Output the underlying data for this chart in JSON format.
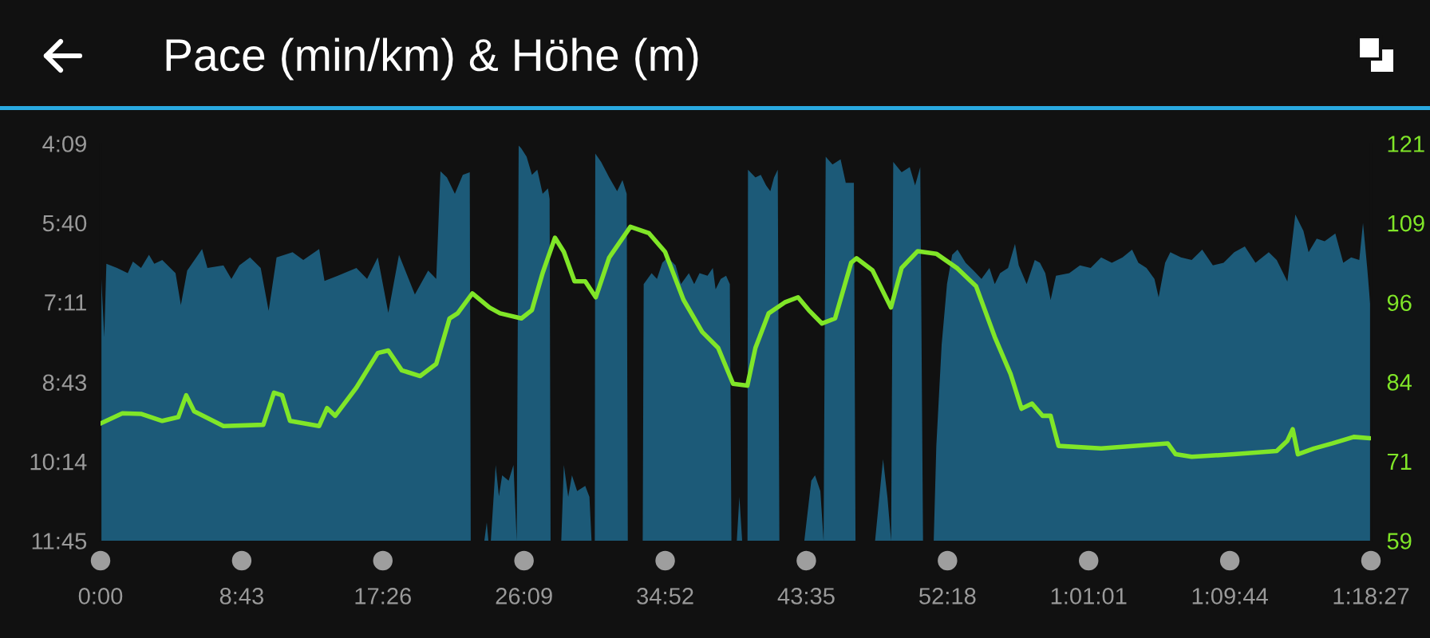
{
  "chart_data": {
    "type": "area",
    "title": "Pace (min/km) & Höhe (m)",
    "grid": false,
    "xlim": [
      0,
      78.45
    ],
    "xticks": [
      {
        "value": 0,
        "label": "0:00"
      },
      {
        "value": 8.717,
        "label": "8:43"
      },
      {
        "value": 17.433,
        "label": "17:26"
      },
      {
        "value": 26.15,
        "label": "26:09"
      },
      {
        "value": 34.867,
        "label": "34:52"
      },
      {
        "value": 43.583,
        "label": "43:35"
      },
      {
        "value": 52.3,
        "label": "52:18"
      },
      {
        "value": 61.017,
        "label": "1:01:01"
      },
      {
        "value": 69.733,
        "label": "1:09:44"
      },
      {
        "value": 78.45,
        "label": "1:18:27"
      }
    ],
    "ylim": [
      11.75,
      4.15
    ],
    "yticks": [
      {
        "value": 4.15,
        "label": "4:09"
      },
      {
        "value": 5.667,
        "label": "5:40"
      },
      {
        "value": 7.183,
        "label": "7:11"
      },
      {
        "value": 8.717,
        "label": "8:43"
      },
      {
        "value": 10.233,
        "label": "10:14"
      },
      {
        "value": 11.75,
        "label": "11:45"
      }
    ],
    "y2lim": [
      59,
      121
    ],
    "y2ticks": [
      59,
      {
        "value": 71.4,
        "label": "71"
      },
      {
        "value": 83.8,
        "label": "84"
      },
      {
        "value": 96.2,
        "label": "96"
      },
      {
        "value": 108.6,
        "label": "109"
      },
      121
    ],
    "series": [
      {
        "color": "#1c5a78",
        "x": [
          0,
          0,
          0.23,
          0.36,
          1.02,
          1.68,
          2.0,
          2.5,
          2.99,
          3.32,
          3.81,
          4.63,
          4.96,
          5.35,
          6.27,
          6.6,
          7.59,
          8.08,
          8.57,
          9.23,
          9.89,
          10.38,
          10.87,
          11.86,
          12.52,
          13.5,
          13.83,
          14.65,
          15.8,
          16.46,
          17.12,
          17.77,
          18.43,
          19.41,
          20.23,
          20.73,
          20.99,
          21.39,
          21.88,
          22.37,
          22.8,
          22.86,
          23.7,
          23.85,
          23.95,
          24.1,
          24.4,
          24.6,
          24.8,
          25.2,
          25.5,
          25.7,
          25.82,
          25.98,
          26.31,
          26.64,
          26.97,
          27.3,
          27.63,
          27.73,
          27.79,
          28.45,
          28.61,
          28.88,
          29.11,
          29.43,
          29.93,
          30.19,
          30.32,
          30.52,
          30.55,
          30.91,
          31.41,
          31.9,
          32.23,
          32.49,
          32.56,
          33.48,
          33.54,
          34.03,
          34.36,
          34.69,
          35.02,
          35.51,
          35.84,
          36.33,
          36.66,
          36.99,
          37.48,
          37.81,
          37.98,
          38.3,
          38.63,
          38.86,
          38.96,
          39.29,
          39.45,
          39.62,
          39.95,
          39.98,
          40.44,
          40.77,
          41.1,
          41.36,
          41.59,
          41.82,
          41.92,
          43.46,
          43.89,
          44.12,
          44.45,
          44.65,
          44.78,
          45.2,
          45.7,
          46.02,
          46.52,
          46.62,
          47.83,
          48.32,
          48.59,
          48.82,
          48.95,
          49.47,
          49.97,
          50.3,
          50.62,
          50.79,
          51.45,
          51.61,
          51.94,
          52.27,
          52.59,
          52.92,
          53.42,
          53.91,
          54.4,
          54.89,
          55.22,
          55.55,
          56.04,
          56.47,
          56.7,
          57.19,
          57.69,
          58.01,
          58.34,
          58.67,
          59.0,
          59.82,
          60.48,
          61.14,
          61.79,
          62.45,
          63.11,
          63.7,
          64.09,
          64.59,
          65.08,
          65.34,
          65.74,
          66.06,
          66.72,
          67.38,
          68.03,
          68.69,
          69.35,
          70.01,
          70.66,
          71.32,
          72.14,
          72.63,
          73.29,
          73.78,
          74.28,
          74.6,
          75.1,
          75.59,
          76.25,
          76.74,
          77.23,
          77.73,
          77.96,
          78.22,
          78.45,
          78.45
        ],
        "values": [
          11.75,
          6.43,
          7.85,
          6.45,
          6.53,
          6.63,
          6.41,
          6.53,
          6.28,
          6.45,
          6.38,
          6.63,
          7.24,
          6.58,
          6.17,
          6.53,
          6.48,
          6.74,
          6.48,
          6.33,
          6.53,
          7.35,
          6.33,
          6.23,
          6.38,
          6.17,
          6.78,
          6.68,
          6.53,
          6.74,
          6.33,
          7.39,
          6.28,
          7.04,
          6.58,
          6.74,
          4.68,
          4.8,
          5.11,
          4.75,
          4.7,
          11.75,
          11.75,
          11.4,
          11.75,
          11.75,
          10.3,
          10.9,
          10.5,
          10.6,
          10.3,
          11.75,
          4.19,
          4.24,
          4.4,
          4.75,
          4.65,
          5.11,
          5.01,
          5.21,
          11.75,
          11.75,
          10.3,
          10.91,
          10.5,
          10.8,
          10.7,
          10.91,
          11.75,
          11.75,
          4.34,
          4.5,
          4.8,
          5.06,
          4.85,
          5.11,
          11.75,
          11.75,
          6.84,
          6.63,
          6.74,
          6.43,
          6.33,
          6.48,
          6.84,
          6.63,
          6.84,
          6.63,
          6.68,
          6.53,
          6.94,
          6.74,
          6.68,
          6.84,
          11.75,
          11.75,
          10.91,
          11.75,
          11.75,
          4.65,
          4.8,
          4.75,
          4.95,
          5.06,
          4.8,
          4.65,
          11.75,
          11.75,
          10.6,
          10.5,
          10.8,
          11.75,
          4.4,
          4.55,
          4.45,
          4.9,
          4.9,
          11.75,
          11.75,
          10.19,
          10.91,
          11.75,
          4.5,
          4.7,
          4.6,
          4.95,
          4.6,
          11.75,
          11.75,
          9.94,
          8.0,
          6.84,
          6.28,
          6.18,
          6.43,
          6.58,
          6.74,
          6.53,
          6.84,
          6.63,
          6.53,
          6.07,
          6.48,
          6.84,
          6.38,
          6.43,
          6.63,
          7.14,
          6.68,
          6.63,
          6.48,
          6.53,
          6.33,
          6.43,
          6.33,
          6.18,
          6.43,
          6.53,
          6.74,
          7.09,
          6.43,
          6.23,
          6.33,
          6.38,
          6.18,
          6.48,
          6.43,
          6.23,
          6.12,
          6.43,
          6.23,
          6.38,
          6.79,
          5.51,
          5.82,
          6.23,
          5.97,
          6.02,
          5.87,
          6.43,
          6.33,
          6.38,
          5.67,
          6.53,
          7.4,
          11.75
        ]
      },
      {
        "type": "line",
        "axis": "y2",
        "color": "#80e628",
        "x": [
          0,
          1.35,
          2.49,
          3.81,
          4.8,
          5.29,
          5.78,
          7.59,
          10.05,
          10.71,
          11.21,
          11.7,
          13.5,
          13.99,
          14.49,
          15.8,
          17.12,
          17.77,
          18.6,
          19.74,
          20.73,
          21.55,
          22.05,
          22.96,
          24.02,
          24.67,
          25.99,
          26.64,
          27.3,
          28.06,
          28.61,
          29.27,
          29.93,
          30.58,
          31.41,
          32.72,
          33.87,
          34.86,
          36.0,
          37.15,
          38.14,
          39.06,
          39.94,
          40.44,
          41.26,
          42.25,
          43.07,
          43.73,
          44.55,
          45.36,
          46.35,
          46.68,
          47.67,
          48.81,
          49.47,
          50.46,
          51.61,
          52.92,
          54.07,
          55.22,
          56.2,
          56.87,
          57.52,
          58.17,
          58.67,
          59.16,
          61.79,
          65.9,
          66.39,
          67.38,
          70.0,
          72.63,
          73.29,
          73.62,
          73.94,
          74.93,
          76.08,
          77.39,
          78.38
        ],
        "values": [
          77.3,
          78.9,
          78.8,
          77.7,
          78.3,
          81.7,
          79.2,
          76.9,
          77.1,
          82.1,
          81.7,
          77.7,
          76.9,
          79.7,
          78.5,
          82.9,
          88.3,
          88.7,
          85.6,
          84.7,
          86.6,
          93.7,
          94.5,
          97.6,
          95.4,
          94.5,
          93.7,
          95.0,
          100.8,
          106.3,
          104.1,
          99.5,
          99.5,
          97.0,
          103.2,
          108.0,
          107.0,
          104.1,
          96.6,
          91.6,
          89.1,
          83.5,
          83.2,
          89.1,
          94.5,
          96.2,
          97.0,
          95.0,
          92.9,
          93.7,
          102.4,
          103.1,
          101.2,
          95.4,
          101.6,
          104.2,
          103.8,
          101.5,
          98.7,
          90.8,
          85.0,
          79.6,
          80.4,
          78.5,
          78.5,
          73.8,
          73.4,
          74.2,
          72.5,
          72.1,
          72.5,
          73.0,
          74.6,
          76.4,
          72.5,
          73.4,
          74.2,
          75.2,
          75.0
        ]
      }
    ]
  }
}
